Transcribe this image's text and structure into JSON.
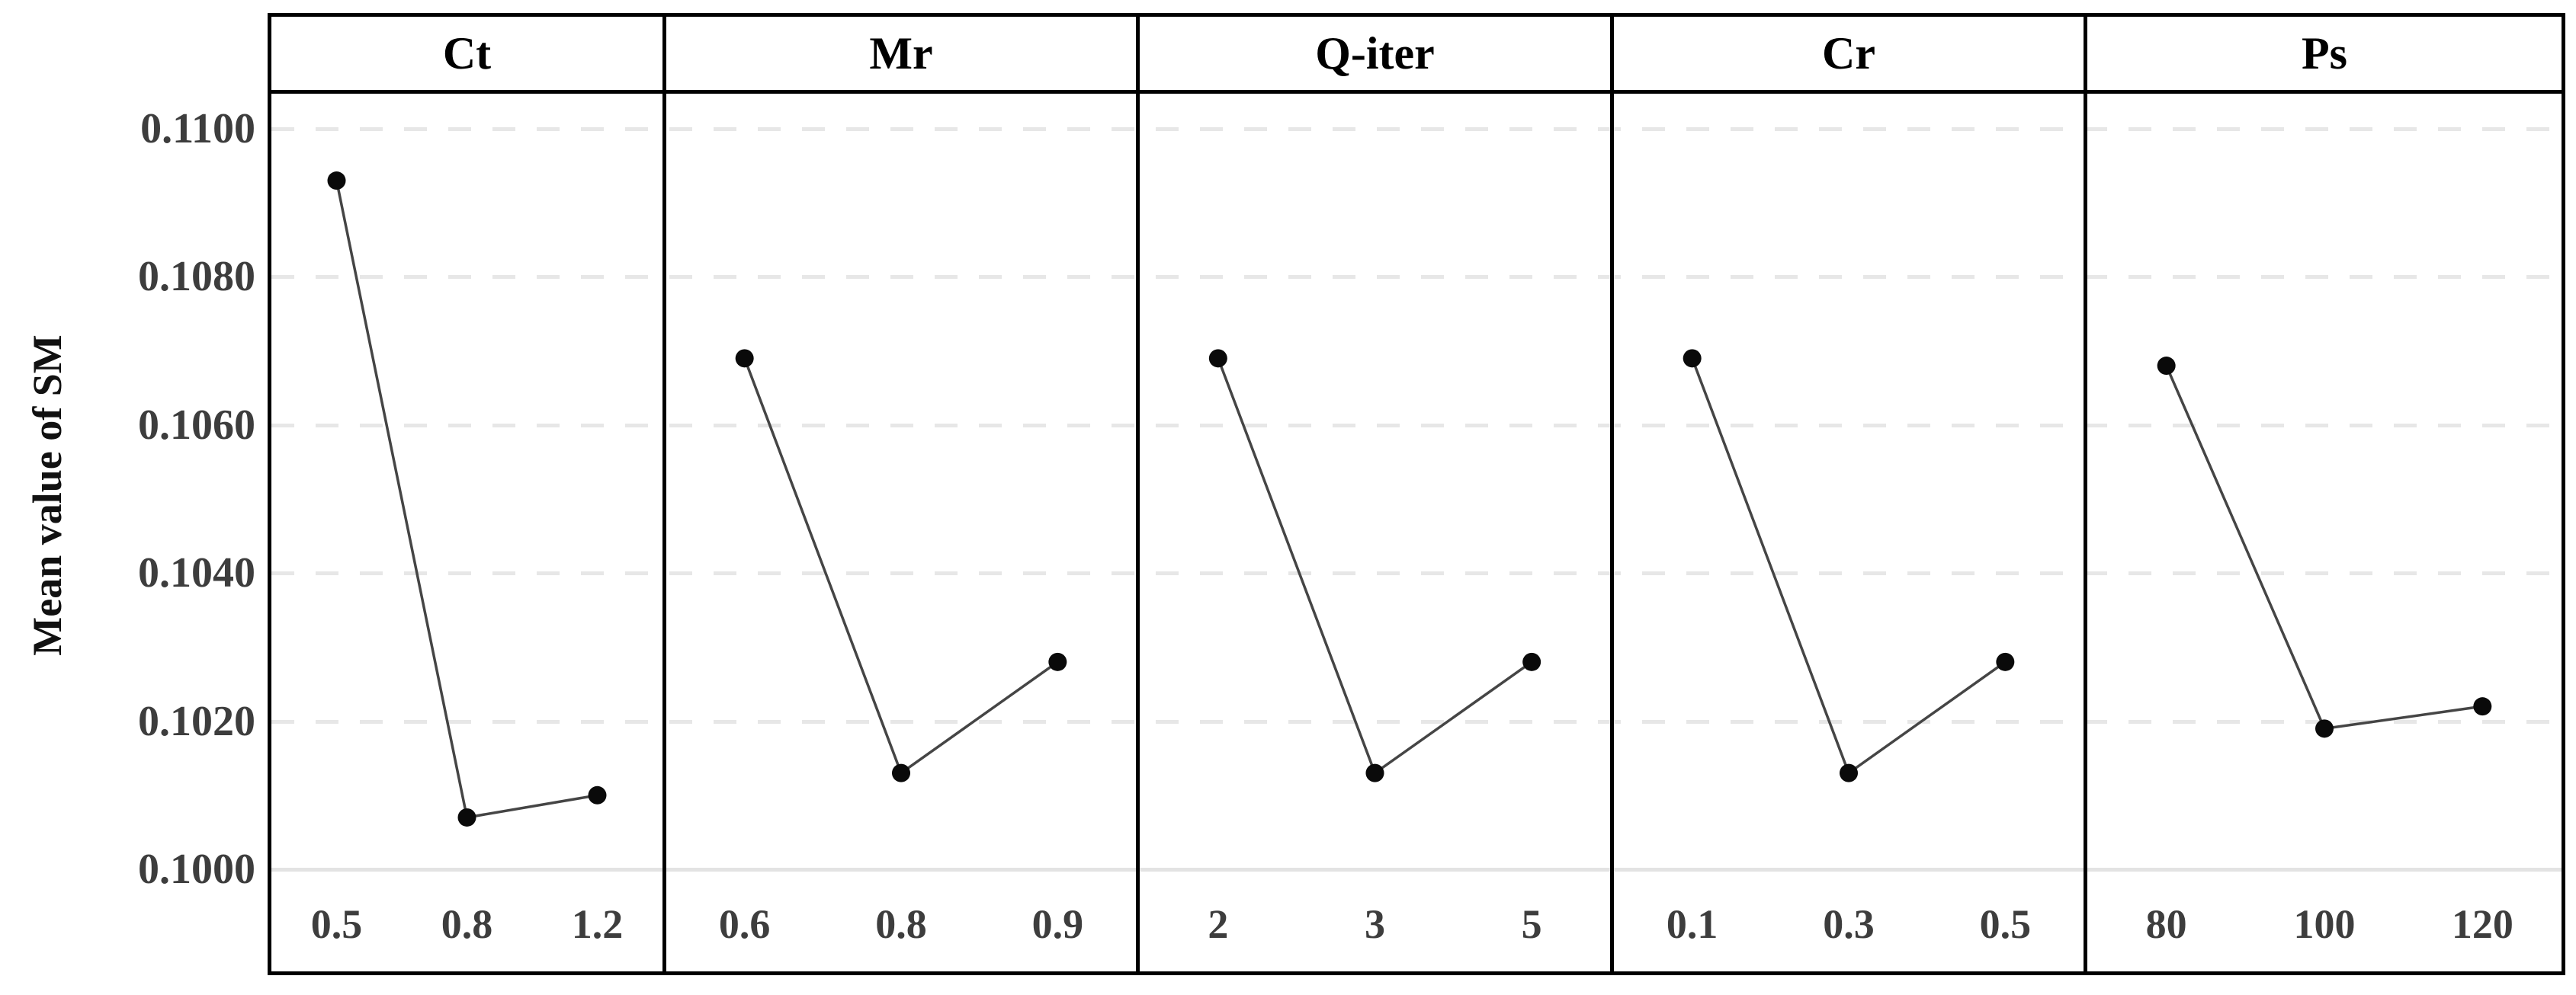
{
  "chart_data": {
    "type": "line",
    "title": "",
    "ylabel": "Mean value of SM",
    "xlabel": "",
    "legend": "none",
    "grid": "horizontal-dashed",
    "ylim": [
      0.0986,
      0.1106
    ],
    "ytick_values": [
      0.11,
      0.108,
      0.106,
      0.104,
      0.102,
      0.1
    ],
    "ytick_labels": [
      "0.1100",
      "0.1080",
      "0.1060",
      "0.1040",
      "0.1020",
      "0.1000"
    ],
    "baseline_value": 0.1,
    "marker": "filled-circle",
    "panels": [
      {
        "label": "Ct",
        "categories": [
          "0.5",
          "0.8",
          "1.2"
        ],
        "values": [
          0.1093,
          0.1007,
          0.101
        ]
      },
      {
        "label": "Mr",
        "categories": [
          "0.6",
          "0.8",
          "0.9"
        ],
        "values": [
          0.1069,
          0.1013,
          0.1028
        ]
      },
      {
        "label": "Q-iter",
        "categories": [
          "2",
          "3",
          "5"
        ],
        "values": [
          0.1069,
          0.1013,
          0.1028
        ]
      },
      {
        "label": "Cr",
        "categories": [
          "0.1",
          "0.3",
          "0.5"
        ],
        "values": [
          0.1069,
          0.1013,
          0.1028
        ]
      },
      {
        "label": "Ps",
        "categories": [
          "80",
          "100",
          "120"
        ],
        "values": [
          0.1068,
          0.1019,
          0.1022
        ]
      }
    ],
    "colors": {
      "point": "#0a0a0a",
      "line": "#454545",
      "grid": "#e7e7e7",
      "baseline": "#e3e3e3",
      "border": "#000000",
      "tick_text": "#3d3d3d",
      "header_text": "#000000",
      "background": "#ffffff"
    }
  }
}
